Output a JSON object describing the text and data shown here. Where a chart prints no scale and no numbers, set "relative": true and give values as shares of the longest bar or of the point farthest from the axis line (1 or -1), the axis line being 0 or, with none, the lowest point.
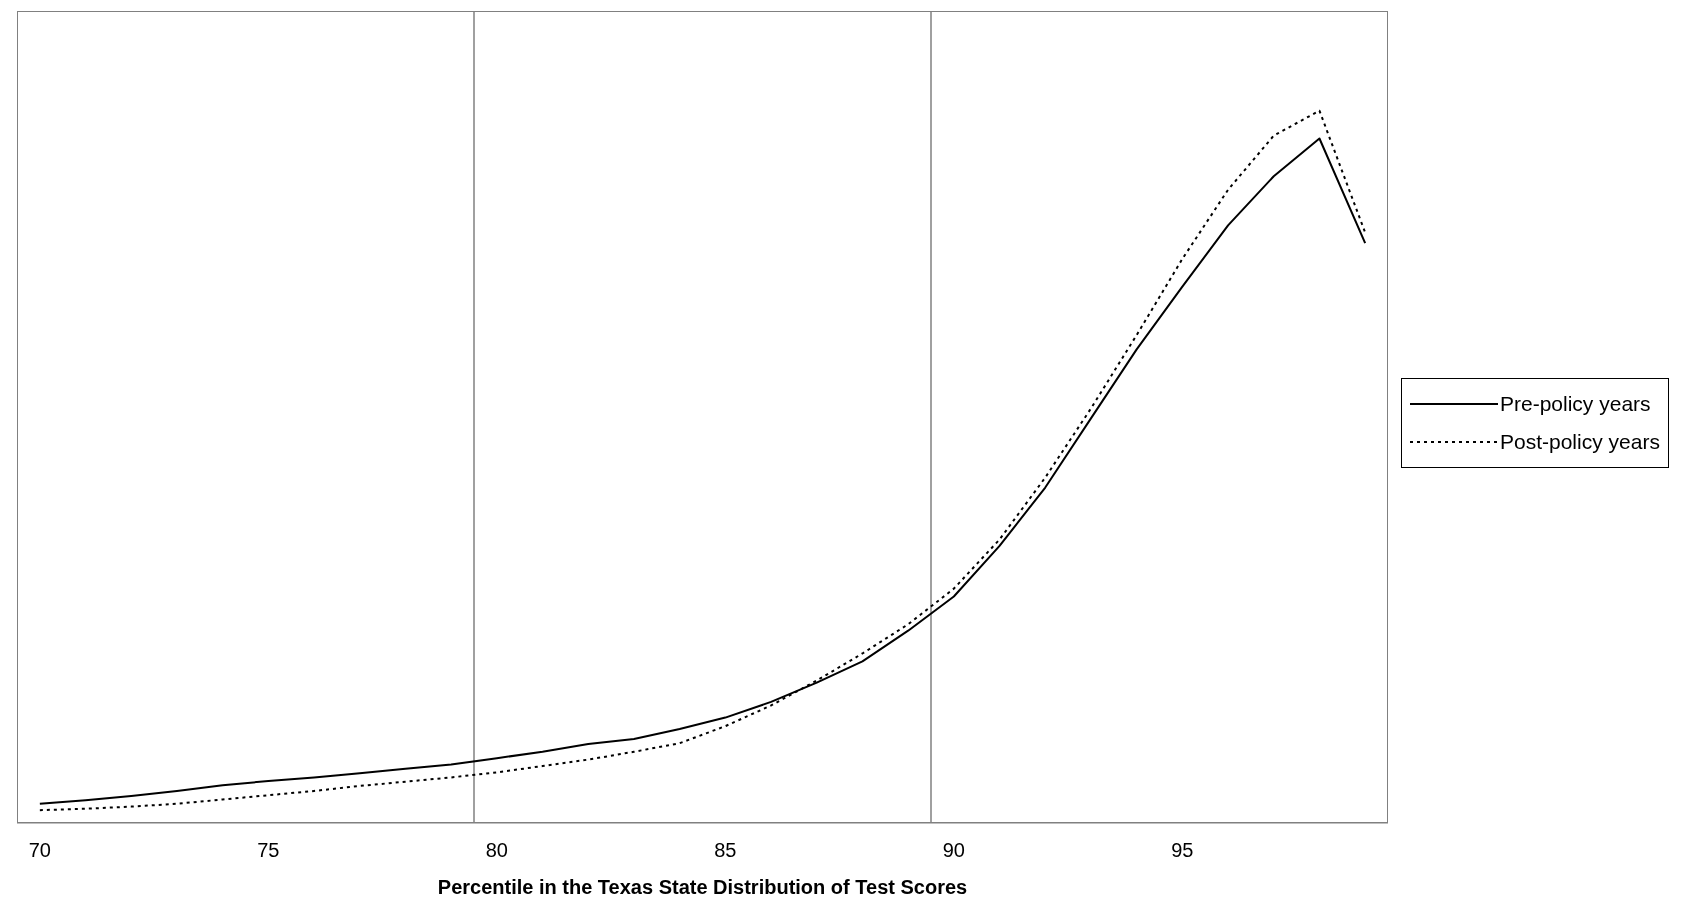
{
  "chart_data": {
    "type": "line",
    "relative": true,
    "xlabel": "Percentile in the Texas State Distribution of Test Scores",
    "x": [
      70,
      71,
      72,
      73,
      74,
      75,
      76,
      77,
      78,
      79,
      80,
      81,
      82,
      83,
      84,
      85,
      86,
      87,
      88,
      89,
      90,
      91,
      92,
      93,
      94,
      95,
      96,
      97,
      98,
      99
    ],
    "xlim": [
      69.5,
      99.5
    ],
    "xticks": [
      70,
      75,
      80,
      85,
      90,
      95
    ],
    "ref_lines": [
      {
        "axis": "x",
        "value": 79.5,
        "color": "#808080"
      },
      {
        "axis": "x",
        "value": 89.5,
        "color": "#808080"
      }
    ],
    "legend": "right",
    "marker": "none",
    "series": [
      {
        "name": "Pre-policy years",
        "color": "#000000",
        "line_style": "solid",
        "values": [
          0.027,
          0.032,
          0.038,
          0.045,
          0.053,
          0.059,
          0.064,
          0.07,
          0.076,
          0.082,
          0.091,
          0.1,
          0.111,
          0.118,
          0.132,
          0.148,
          0.17,
          0.197,
          0.227,
          0.27,
          0.318,
          0.389,
          0.471,
          0.568,
          0.665,
          0.753,
          0.839,
          0.908,
          0.961,
          0.814
        ]
      },
      {
        "name": "Post-policy years",
        "color": "#000000",
        "line_style": "dotted",
        "values": [
          0.018,
          0.02,
          0.023,
          0.027,
          0.033,
          0.039,
          0.045,
          0.052,
          0.058,
          0.064,
          0.071,
          0.08,
          0.089,
          0.1,
          0.112,
          0.136,
          0.165,
          0.2,
          0.238,
          0.279,
          0.329,
          0.398,
          0.485,
          0.582,
          0.685,
          0.792,
          0.889,
          0.965,
          1,
          0.829
        ]
      }
    ]
  }
}
